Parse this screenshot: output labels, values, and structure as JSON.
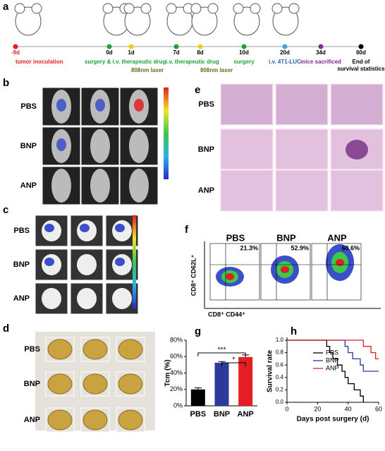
{
  "panels": {
    "a": "a",
    "b": "b",
    "c": "c",
    "d": "d",
    "e": "e",
    "f": "f",
    "g": "g",
    "h": "h"
  },
  "timeline": {
    "days": [
      "-9d",
      "0d",
      "1d",
      "7d",
      "8d",
      "10d",
      "20d",
      "34d",
      "60d"
    ],
    "events": [
      "tumor inoculation",
      "surgery & i.v. therapeutic drug",
      "808nm laser",
      "i.v. therapeutic drug",
      "808nm laser",
      "surgery",
      "i.v. 4T1-LUC",
      "mice sacrificed",
      "End of",
      "survival statistics"
    ]
  },
  "panel_b": {
    "rows": [
      "PBS",
      "BNP",
      "ANP"
    ]
  },
  "panel_c": {
    "rows": [
      "PBS",
      "BNP",
      "ANP"
    ]
  },
  "panel_d": {
    "rows": [
      "PBS",
      "BNP",
      "ANP"
    ]
  },
  "panel_e": {
    "rows": [
      "PBS",
      "BNP",
      "ANP"
    ]
  },
  "panel_f": {
    "groups": [
      "PBS",
      "BNP",
      "ANP"
    ],
    "percentages": [
      "21.3%",
      "52.9%",
      "60.6%"
    ],
    "ylabel": "CD8⁺ CD62L⁺",
    "xlabel": "CD8⁺ CD44⁺"
  },
  "chart_data": [
    {
      "type": "bar",
      "ylabel": "Tcm (%)",
      "categories": [
        "PBS",
        "BNP",
        "ANP"
      ],
      "values": [
        20,
        52.5,
        59.5
      ],
      "errors": [
        2,
        1.5,
        2.5
      ],
      "colors": [
        "#000000",
        "#2b3a9b",
        "#e31e24"
      ],
      "ylim": [
        0,
        80
      ],
      "yticks": [
        {
          "value": 0,
          "label": "0%"
        },
        {
          "value": 20,
          "label": "20%"
        },
        {
          "value": 40,
          "label": "40%"
        },
        {
          "value": 60,
          "label": "60%"
        },
        {
          "value": 80,
          "label": "80%"
        }
      ],
      "annotations": [
        "***",
        "*"
      ]
    },
    {
      "type": "line",
      "xlabel": "Days post surgery (d)",
      "ylabel": "Survival rate",
      "xlim": [
        0,
        60
      ],
      "xticks": [
        0,
        20,
        40,
        60
      ],
      "ylim": [
        0,
        1
      ],
      "yticks": [
        {
          "value": 0,
          "label": "0.0"
        },
        {
          "value": 0.2,
          "label": "0.2"
        },
        {
          "value": 0.4,
          "label": "0.4"
        },
        {
          "value": 0.6,
          "label": "0.6"
        },
        {
          "value": 0.8,
          "label": "0.8"
        },
        {
          "value": 1,
          "label": "1.0"
        }
      ],
      "legend": "upper center",
      "series": [
        {
          "name": "PBS",
          "color": "#000000",
          "x": [
            0,
            26,
            28,
            30,
            33,
            36,
            38,
            40,
            44,
            48,
            50
          ],
          "values": [
            1,
            0.9,
            0.8,
            0.7,
            0.6,
            0.5,
            0.4,
            0.3,
            0.2,
            0.1,
            0
          ]
        },
        {
          "name": "BNP",
          "color": "#2b3a9b",
          "x": [
            0,
            38,
            40,
            43,
            48,
            50,
            60
          ],
          "values": [
            1,
            0.9,
            0.8,
            0.7,
            0.6,
            0.5,
            0.5
          ]
        },
        {
          "name": "ANP",
          "color": "#e31e24",
          "x": [
            0,
            50,
            55,
            58,
            60
          ],
          "values": [
            1,
            0.9,
            0.8,
            0.7,
            0.7
          ]
        }
      ]
    }
  ]
}
